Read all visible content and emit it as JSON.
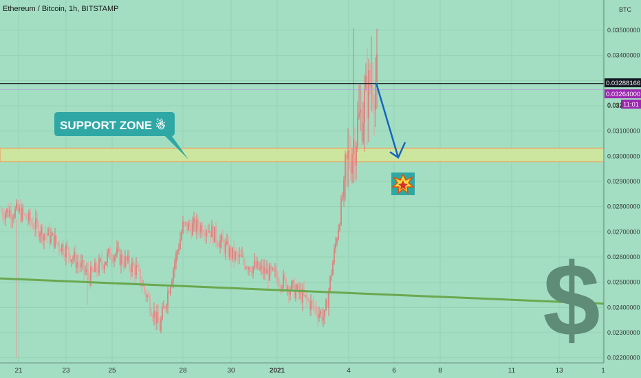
{
  "header": {
    "symbol": "Ethereum / Bitcoin, 1h, BITSTAMP"
  },
  "annotations": {
    "support_label": "SUPPORT ZONE ☃",
    "explosion_icon": "collision-icon",
    "dollar_sign": "$"
  },
  "price_axis": {
    "currency": "BTC",
    "last_price": "0.03288166",
    "bid_price": "0.03264000",
    "countdown": "11:01",
    "last_price_color": "#131722",
    "bid_price_color": "#9c27b0",
    "countdown_color": "#9c27b0",
    "partial_tag_1": "0.032",
    "partial_tag_2": "0.032"
  },
  "colors": {
    "background": "#a3dec2",
    "support_zone_fill": "#d4e89a",
    "support_zone_border": "#e8a76a",
    "trendline": "#6aa84f",
    "arrow": "#1565c0",
    "callout": "#2fa8a5",
    "candle_up": "#e57373",
    "candle_down": "#ef9a9a"
  },
  "chart_data": {
    "type": "candlestick",
    "title": "Ethereum / Bitcoin, 1h, BITSTAMP",
    "y_axis_ticks": [
      "0.03500000",
      "0.03400000",
      "0.03300000",
      "0.03200000",
      "0.03100000",
      "0.03000000",
      "0.02900000",
      "0.02800000",
      "0.02700000",
      "0.02600000",
      "0.02500000",
      "0.02400000",
      "0.02300000",
      "0.02200000"
    ],
    "y_range": [
      0.0218,
      0.0362
    ],
    "x_axis_ticks": [
      "21",
      "23",
      "25",
      "28",
      "30",
      "2021",
      "4",
      "6",
      "8",
      "11",
      "13",
      "1"
    ],
    "price_path": [
      [
        "21",
        0.0278
      ],
      [
        "22",
        0.027
      ],
      [
        "23",
        0.0263
      ],
      [
        "24",
        0.0252
      ],
      [
        "25",
        0.0262
      ],
      [
        "26",
        0.0255
      ],
      [
        "27",
        0.0232
      ],
      [
        "28",
        0.0272
      ],
      [
        "29",
        0.0272
      ],
      [
        "30",
        0.0261
      ],
      [
        "31",
        0.0256
      ],
      [
        "2021",
        0.0252
      ],
      [
        "2",
        0.0245
      ],
      [
        "3",
        0.0236
      ],
      [
        "4",
        0.03
      ],
      [
        "5",
        0.033
      ]
    ],
    "support_zone": [
      0.02978,
      0.03032
    ],
    "trendline": [
      [
        "21",
        0.02515
      ],
      [
        "1",
        0.02415
      ]
    ],
    "horizontal_line": 0.03288166,
    "projection": [
      [
        "5",
        0.0329
      ],
      [
        "6",
        0.02995
      ]
    ]
  }
}
